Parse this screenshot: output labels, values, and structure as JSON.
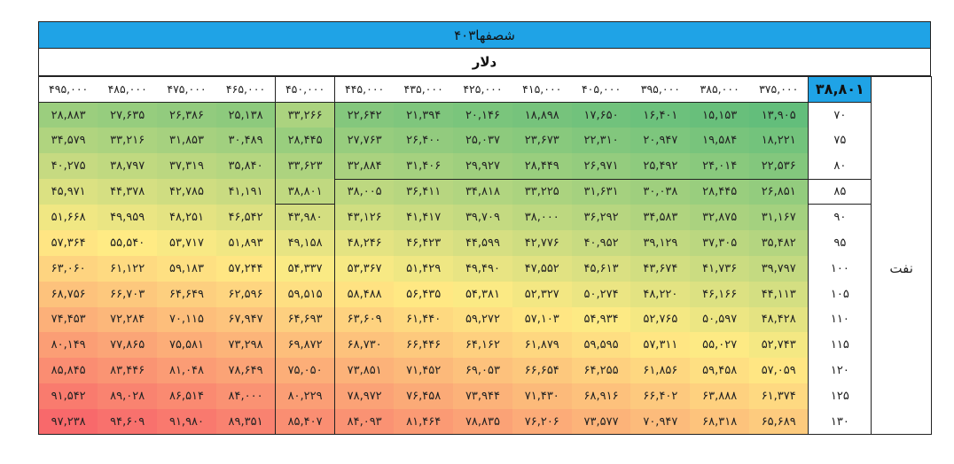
{
  "sheet": {
    "title": "شصفها۴۰۳",
    "currency_label": "دلار",
    "corner_value": "۳۸,۸۰۱",
    "row_axis_label": "نفت"
  },
  "columns": [
    "۴۹۵,۰۰۰",
    "۴۸۵,۰۰۰",
    "۴۷۵,۰۰۰",
    "۴۶۵,۰۰۰",
    "۴۵۰,۰۰۰",
    "۴۴۵,۰۰۰",
    "۴۳۵,۰۰۰",
    "۴۲۵,۰۰۰",
    "۴۱۵,۰۰۰",
    "۴۰۵,۰۰۰",
    "۳۹۵,۰۰۰",
    "۳۸۵,۰۰۰",
    "۳۷۵,۰۰۰"
  ],
  "rows": [
    {
      "label": "۷۰",
      "values": [
        "۲۸,۸۸۳",
        "۲۷,۶۳۵",
        "۲۶,۳۸۶",
        "۲۵,۱۳۸",
        "۳۳,۲۶۶",
        "۲۲,۶۴۲",
        "۲۱,۳۹۴",
        "۲۰,۱۴۶",
        "۱۸,۸۹۸",
        "۱۷,۶۵۰",
        "۱۶,۴۰۱",
        "۱۵,۱۵۳",
        "۱۳,۹۰۵"
      ]
    },
    {
      "label": "۷۵",
      "values": [
        "۳۴,۵۷۹",
        "۳۳,۲۱۶",
        "۳۱,۸۵۳",
        "۳۰,۴۸۹",
        "۲۸,۴۴۵",
        "۲۷,۷۶۳",
        "۲۶,۴۰۰",
        "۲۵,۰۳۷",
        "۲۳,۶۷۳",
        "۲۲,۳۱۰",
        "۲۰,۹۴۷",
        "۱۹,۵۸۴",
        "۱۸,۲۲۱"
      ]
    },
    {
      "label": "۸۰",
      "values": [
        "۴۰,۲۷۵",
        "۳۸,۷۹۷",
        "۳۷,۳۱۹",
        "۳۵,۸۴۰",
        "۳۳,۶۲۳",
        "۳۲,۸۸۴",
        "۳۱,۴۰۶",
        "۲۹,۹۲۷",
        "۲۸,۴۴۹",
        "۲۶,۹۷۱",
        "۲۵,۴۹۲",
        "۲۴,۰۱۴",
        "۲۲,۵۳۶"
      ]
    },
    {
      "label": "۸۵",
      "values": [
        "۴۵,۹۷۱",
        "۴۴,۳۷۸",
        "۴۲,۷۸۵",
        "۴۱,۱۹۱",
        "۳۸,۸۰۱",
        "۳۸,۰۰۵",
        "۳۶,۴۱۱",
        "۳۴,۸۱۸",
        "۳۳,۲۲۵",
        "۳۱,۶۳۱",
        "۳۰,۰۳۸",
        "۲۸,۴۴۵",
        "۲۶,۸۵۱"
      ]
    },
    {
      "label": "۹۰",
      "values": [
        "۵۱,۶۶۸",
        "۴۹,۹۵۹",
        "۴۸,۲۵۱",
        "۴۶,۵۴۲",
        "۴۳,۹۸۰",
        "۴۳,۱۲۶",
        "۴۱,۴۱۷",
        "۳۹,۷۰۹",
        "۳۸,۰۰۰",
        "۳۶,۲۹۲",
        "۳۴,۵۸۳",
        "۳۲,۸۷۵",
        "۳۱,۱۶۷"
      ]
    },
    {
      "label": "۹۵",
      "values": [
        "۵۷,۳۶۴",
        "۵۵,۵۴۰",
        "۵۳,۷۱۷",
        "۵۱,۸۹۳",
        "۴۹,۱۵۸",
        "۴۸,۲۴۶",
        "۴۶,۴۲۳",
        "۴۴,۵۹۹",
        "۴۲,۷۷۶",
        "۴۰,۹۵۲",
        "۳۹,۱۲۹",
        "۳۷,۳۰۵",
        "۳۵,۴۸۲"
      ]
    },
    {
      "label": "۱۰۰",
      "values": [
        "۶۳,۰۶۰",
        "۶۱,۱۲۲",
        "۵۹,۱۸۳",
        "۵۷,۲۴۴",
        "۵۴,۳۳۷",
        "۵۳,۳۶۷",
        "۵۱,۴۲۹",
        "۴۹,۴۹۰",
        "۴۷,۵۵۲",
        "۴۵,۶۱۳",
        "۴۳,۶۷۴",
        "۴۱,۷۳۶",
        "۳۹,۷۹۷"
      ]
    },
    {
      "label": "۱۰۵",
      "values": [
        "۶۸,۷۵۶",
        "۶۶,۷۰۳",
        "۶۴,۶۴۹",
        "۶۲,۵۹۶",
        "۵۹,۵۱۵",
        "۵۸,۴۸۸",
        "۵۶,۴۳۵",
        "۵۴,۳۸۱",
        "۵۲,۳۲۷",
        "۵۰,۲۷۴",
        "۴۸,۲۲۰",
        "۴۶,۱۶۶",
        "۴۴,۱۱۳"
      ]
    },
    {
      "label": "۱۱۰",
      "values": [
        "۷۴,۴۵۳",
        "۷۲,۲۸۴",
        "۷۰,۱۱۵",
        "۶۷,۹۴۷",
        "۶۴,۶۹۳",
        "۶۳,۶۰۹",
        "۶۱,۴۴۰",
        "۵۹,۲۷۲",
        "۵۷,۱۰۳",
        "۵۴,۹۳۴",
        "۵۲,۷۶۵",
        "۵۰,۵۹۷",
        "۴۸,۴۲۸"
      ]
    },
    {
      "label": "۱۱۵",
      "values": [
        "۸۰,۱۴۹",
        "۷۷,۸۶۵",
        "۷۵,۵۸۱",
        "۷۳,۲۹۸",
        "۶۹,۸۷۲",
        "۶۸,۷۳۰",
        "۶۶,۴۴۶",
        "۶۴,۱۶۲",
        "۶۱,۸۷۹",
        "۵۹,۵۹۵",
        "۵۷,۳۱۱",
        "۵۵,۰۲۷",
        "۵۲,۷۴۳"
      ]
    },
    {
      "label": "۱۲۰",
      "values": [
        "۸۵,۸۴۵",
        "۸۳,۴۴۶",
        "۸۱,۰۴۸",
        "۷۸,۶۴۹",
        "۷۵,۰۵۰",
        "۷۳,۸۵۱",
        "۷۱,۴۵۲",
        "۶۹,۰۵۳",
        "۶۶,۶۵۴",
        "۶۴,۲۵۵",
        "۶۱,۸۵۶",
        "۵۹,۴۵۸",
        "۵۷,۰۵۹"
      ]
    },
    {
      "label": "۱۲۵",
      "values": [
        "۹۱,۵۴۲",
        "۸۹,۰۲۸",
        "۸۶,۵۱۴",
        "۸۴,۰۰۰",
        "۸۰,۲۲۹",
        "۷۸,۹۷۲",
        "۷۶,۴۵۸",
        "۷۳,۹۴۴",
        "۷۱,۴۳۰",
        "۶۸,۹۱۶",
        "۶۶,۴۰۲",
        "۶۳,۸۸۸",
        "۶۱,۳۷۴"
      ]
    },
    {
      "label": "۱۳۰",
      "values": [
        "۹۷,۲۳۸",
        "۹۴,۶۰۹",
        "۹۱,۹۸۰",
        "۸۹,۳۵۱",
        "۸۵,۴۰۷",
        "۸۴,۰۹۳",
        "۸۱,۴۶۴",
        "۷۸,۸۳۵",
        "۷۶,۲۰۶",
        "۷۳,۵۷۷",
        "۷۰,۹۴۷",
        "۶۸,۳۱۸",
        "۶۵,۶۸۹"
      ]
    }
  ],
  "colors": {
    "header_blue": "#1fa3e6",
    "scale_low": "#63be7b",
    "scale_mid": "#ffeb84",
    "scale_high": "#f8696b"
  }
}
